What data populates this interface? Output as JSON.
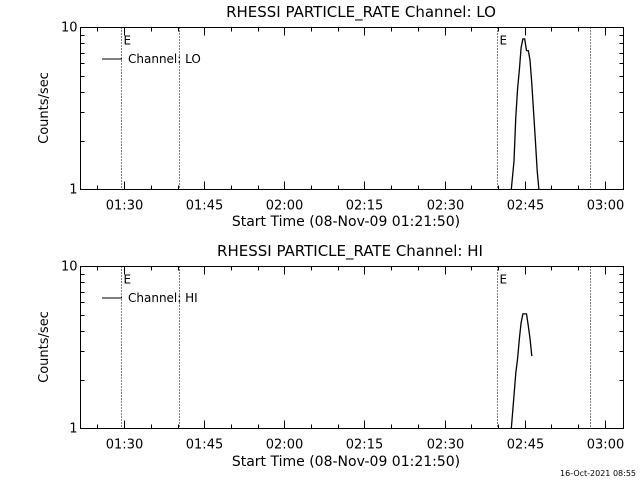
{
  "footer": {
    "timestamp": "16-Oct-2021 08:55"
  },
  "chart_data": [
    {
      "type": "line",
      "title": "RHESSI PARTICLE_RATE Channel: LO",
      "xlabel": "Start Time (08-Nov-09 01:21:50)",
      "ylabel": "Counts/sec",
      "y_scale": "log",
      "ylim": [
        1,
        10
      ],
      "xlim": [
        "01:21:50",
        "03:03:30"
      ],
      "x_ticks": [
        "01:30",
        "01:45",
        "02:00",
        "02:15",
        "02:30",
        "02:45",
        "03:00"
      ],
      "y_ticks": [
        "1",
        "10"
      ],
      "legend": {
        "position": "top-left",
        "entries": [
          "Channel: LO"
        ]
      },
      "vlines": [
        {
          "x": "01:29:30",
          "label": "E"
        },
        {
          "x": "01:40:20",
          "label": ""
        },
        {
          "x": "02:39:50",
          "label": "E"
        },
        {
          "x": "02:57:10",
          "label": ""
        }
      ],
      "series": [
        {
          "name": "Channel: LO",
          "x": [
            "02:42:30",
            "02:43:00",
            "02:43:20",
            "02:43:40",
            "02:44:00",
            "02:44:20",
            "02:44:40",
            "02:45:00",
            "02:45:20",
            "02:45:40",
            "02:46:00",
            "02:46:20",
            "02:46:40",
            "02:47:00",
            "02:47:20",
            "02:47:40"
          ],
          "values": [
            1,
            1.5,
            2.8,
            4.2,
            5.5,
            7.5,
            8.5,
            8.5,
            7.2,
            7.2,
            6.3,
            4.5,
            3.0,
            2.0,
            1.3,
            1
          ]
        }
      ]
    },
    {
      "type": "line",
      "title": "RHESSI PARTICLE_RATE Channel: HI",
      "xlabel": "Start Time (08-Nov-09 01:21:50)",
      "ylabel": "Counts/sec",
      "y_scale": "log",
      "ylim": [
        1,
        10
      ],
      "xlim": [
        "01:21:50",
        "03:03:30"
      ],
      "x_ticks": [
        "01:30",
        "01:45",
        "02:00",
        "02:15",
        "02:30",
        "02:45",
        "03:00"
      ],
      "y_ticks": [
        "1",
        "10"
      ],
      "legend": {
        "position": "top-left",
        "entries": [
          "Channel: HI"
        ]
      },
      "vlines": [
        {
          "x": "01:29:30",
          "label": "E"
        },
        {
          "x": "01:40:20",
          "label": ""
        },
        {
          "x": "02:39:50",
          "label": "E"
        },
        {
          "x": "02:57:10",
          "label": ""
        }
      ],
      "series": [
        {
          "name": "Channel: HI",
          "x": [
            "02:42:30",
            "02:43:00",
            "02:43:20",
            "02:43:40",
            "02:44:00",
            "02:44:20",
            "02:44:40",
            "02:45:00",
            "02:45:20",
            "02:45:40",
            "02:46:00",
            "02:46:20"
          ],
          "values": [
            1,
            1.6,
            2.2,
            2.7,
            3.6,
            4.5,
            5.1,
            5.1,
            5.1,
            4.3,
            3.6,
            2.8
          ]
        }
      ]
    }
  ]
}
